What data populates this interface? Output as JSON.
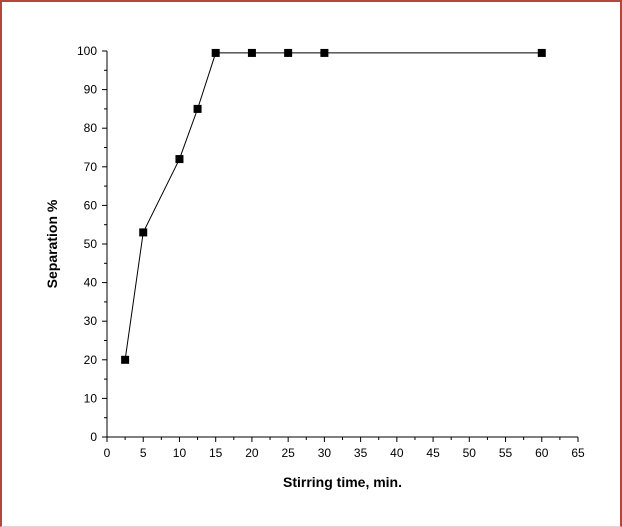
{
  "chart_data": {
    "type": "line",
    "xlabel": "Stirring time, min.",
    "ylabel": "Separation %",
    "xlim": [
      0,
      65
    ],
    "ylim": [
      0,
      100
    ],
    "x_ticks": [
      0,
      5,
      10,
      15,
      20,
      25,
      30,
      35,
      40,
      45,
      50,
      55,
      60,
      65
    ],
    "y_ticks": [
      0,
      10,
      20,
      30,
      40,
      50,
      60,
      70,
      80,
      90,
      100
    ],
    "grid": false,
    "series": [
      {
        "marker": "square",
        "color": "#000000",
        "x": [
          2.5,
          5,
          10,
          12.5,
          15,
          20,
          25,
          30,
          60
        ],
        "y": [
          20,
          53,
          72,
          85,
          99.5,
          99.5,
          99.5,
          99.5,
          99.5
        ]
      }
    ]
  },
  "colors": {
    "frame_border": "#b5463c",
    "axis": "#000000"
  }
}
